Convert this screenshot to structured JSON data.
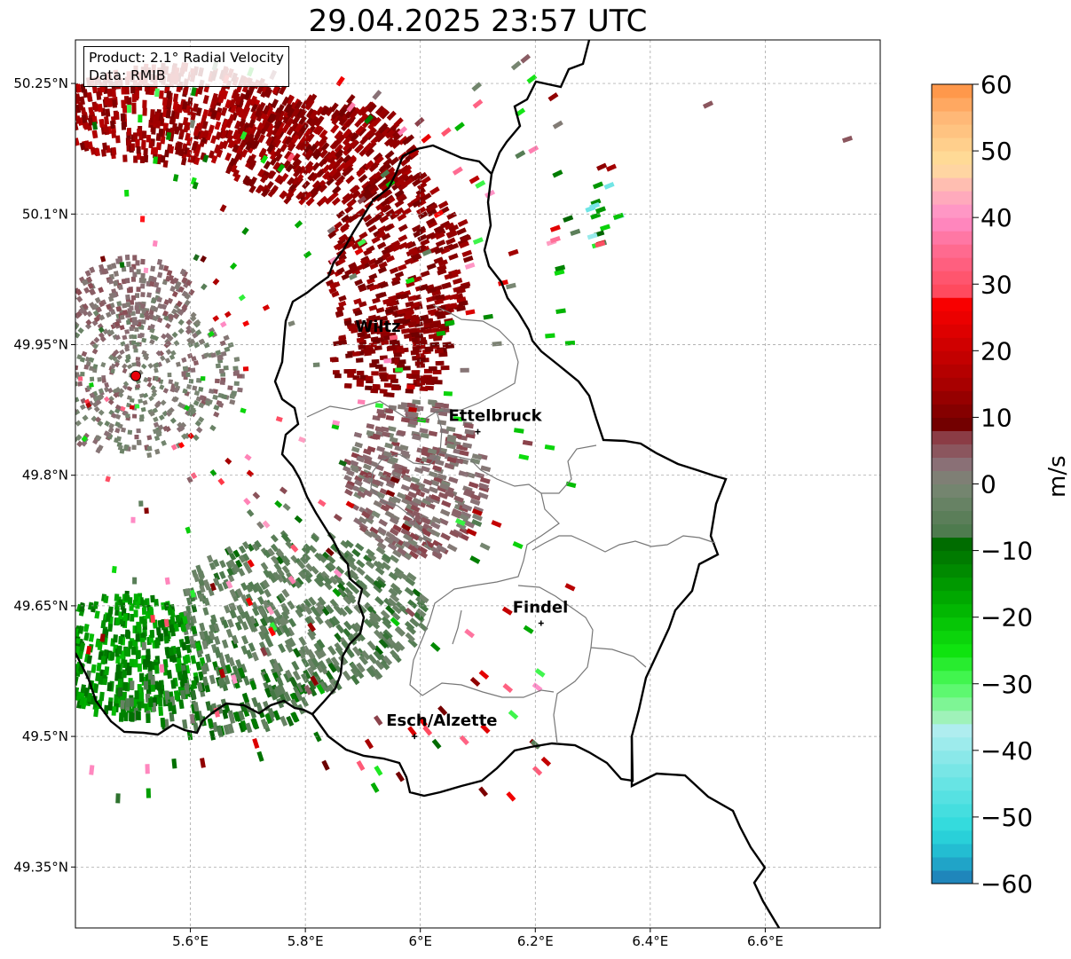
{
  "title": "29.04.2025 23:57 UTC",
  "info": {
    "product": "Product: 2.1° Radial Velocity",
    "data_source": "Data: RMIB"
  },
  "axes": {
    "lon_range": [
      5.4,
      6.8
    ],
    "lat_range": [
      49.28,
      50.3
    ],
    "x_ticks": [
      {
        "value": 5.6,
        "label": "5.6°E"
      },
      {
        "value": 5.8,
        "label": "5.8°E"
      },
      {
        "value": 6.0,
        "label": "6°E"
      },
      {
        "value": 6.2,
        "label": "6.2°E"
      },
      {
        "value": 6.4,
        "label": "6.4°E"
      },
      {
        "value": 6.6,
        "label": "6.6°E"
      }
    ],
    "y_ticks": [
      {
        "value": 50.25,
        "label": "50.25°N"
      },
      {
        "value": 50.1,
        "label": "50.1°N"
      },
      {
        "value": 49.95,
        "label": "49.95°N"
      },
      {
        "value": 49.8,
        "label": "49.8°N"
      },
      {
        "value": 49.65,
        "label": "49.65°N"
      },
      {
        "value": 49.5,
        "label": "49.5°N"
      },
      {
        "value": 49.35,
        "label": "49.35°N"
      }
    ],
    "grid": true
  },
  "radar_site": {
    "lon": 5.505,
    "lat": 49.914,
    "color": "#e8000b"
  },
  "places": [
    {
      "name": "Wiltz",
      "lon": 5.93,
      "lat": 49.97
    },
    {
      "name": "Ettelbruck",
      "lon": 6.1,
      "lat": 49.85
    },
    {
      "name": "Findel",
      "lon": 6.21,
      "lat": 49.63
    },
    {
      "name": "Esch/Alzette",
      "lon": 5.99,
      "lat": 49.5
    }
  ],
  "colorbar": {
    "label": "m/s",
    "range": [
      -60,
      60
    ],
    "ticks": [
      {
        "value": 60,
        "label": "60"
      },
      {
        "value": 50,
        "label": "50"
      },
      {
        "value": 40,
        "label": "40"
      },
      {
        "value": 30,
        "label": "30"
      },
      {
        "value": 20,
        "label": "20"
      },
      {
        "value": 10,
        "label": "10"
      },
      {
        "value": 0,
        "label": "0"
      },
      {
        "value": -10,
        "label": "−10"
      },
      {
        "value": -20,
        "label": "−20"
      },
      {
        "value": -30,
        "label": "−30"
      },
      {
        "value": -40,
        "label": "−40"
      },
      {
        "value": -50,
        "label": "−50"
      },
      {
        "value": -60,
        "label": "−60"
      }
    ],
    "stops": [
      {
        "v": -60,
        "c": "#1f77b4"
      },
      {
        "v": -56,
        "c": "#20b3cf"
      },
      {
        "v": -52,
        "c": "#2cd9dc"
      },
      {
        "v": -44,
        "c": "#6fe5e5"
      },
      {
        "v": -36,
        "c": "#b8eef0"
      },
      {
        "v": -35,
        "c": "#9ff2b9"
      },
      {
        "v": -30,
        "c": "#4dfa5e"
      },
      {
        "v": -25,
        "c": "#0fe30f"
      },
      {
        "v": -18,
        "c": "#00b000"
      },
      {
        "v": -8,
        "c": "#006400"
      },
      {
        "v": -7,
        "c": "#4e7b4e"
      },
      {
        "v": 0,
        "c": "#7a8774"
      },
      {
        "v": 3,
        "c": "#8a7076"
      },
      {
        "v": 7,
        "c": "#8b3c45"
      },
      {
        "v": 8,
        "c": "#6a0000"
      },
      {
        "v": 15,
        "c": "#a80000"
      },
      {
        "v": 28,
        "c": "#ff0000"
      },
      {
        "v": 29,
        "c": "#ff4a5e"
      },
      {
        "v": 36,
        "c": "#ff6f97"
      },
      {
        "v": 40,
        "c": "#ff8ec9"
      },
      {
        "v": 44,
        "c": "#ffb3b8"
      },
      {
        "v": 48,
        "c": "#ffe09b"
      },
      {
        "v": 55,
        "c": "#ffb877"
      },
      {
        "v": 60,
        "c": "#ff9040"
      }
    ]
  }
}
